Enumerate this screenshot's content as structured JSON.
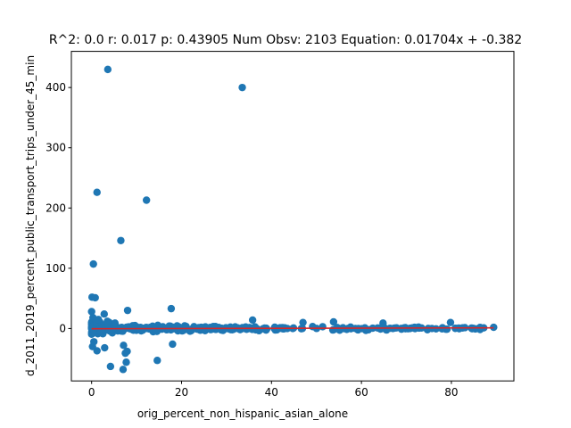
{
  "chart_data": {
    "type": "scatter",
    "title": "R^2: 0.0 r: 0.017 p: 0.43905 Num Obsv: 2103 Equation: 0.01704x + -0.382",
    "xlabel": "orig_percent_non_hispanic_asian_alone",
    "ylabel": "d_2011_2019_percent_public_transport_trips_under_45_min",
    "xlim": [
      -4.5,
      93.9
    ],
    "ylim": [
      -87,
      460
    ],
    "xticks": [
      0,
      20,
      40,
      60,
      80
    ],
    "yticks": [
      0,
      100,
      200,
      300,
      400
    ],
    "grid": false,
    "colors": {
      "points": "#1f77b4",
      "fit_line": "#d62728"
    },
    "fit_line": {
      "slope": 0.01704,
      "intercept": -0.382,
      "x_range": [
        0.0,
        89.4
      ]
    },
    "outliers": [
      [
        3.6,
        430
      ],
      [
        33.5,
        400
      ],
      [
        1.2,
        226
      ],
      [
        12.2,
        213
      ],
      [
        6.5,
        146
      ],
      [
        0.4,
        107
      ],
      [
        0.1,
        52
      ],
      [
        0.8,
        51
      ],
      [
        8.0,
        30
      ],
      [
        0.0,
        28
      ],
      [
        17.7,
        33
      ],
      [
        2.8,
        24
      ],
      [
        4.2,
        -63
      ],
      [
        7.0,
        -68
      ],
      [
        7.7,
        -56
      ],
      [
        14.6,
        -53
      ],
      [
        7.9,
        -38
      ],
      [
        1.2,
        -37
      ],
      [
        0.2,
        -30
      ],
      [
        2.9,
        -32
      ],
      [
        7.1,
        -28
      ],
      [
        18.0,
        -26
      ],
      [
        7.5,
        -41
      ],
      [
        0.5,
        -22
      ],
      [
        0.3,
        18
      ],
      [
        1.5,
        15
      ],
      [
        3.5,
        12
      ],
      [
        5.2,
        9
      ],
      [
        35.8,
        14
      ],
      [
        47.0,
        10
      ],
      [
        53.8,
        11
      ],
      [
        64.8,
        9
      ],
      [
        79.8,
        10
      ],
      [
        89.4,
        2
      ],
      [
        86.0,
        0
      ],
      [
        82.5,
        1
      ]
    ],
    "n_cluster_points": 400
  }
}
